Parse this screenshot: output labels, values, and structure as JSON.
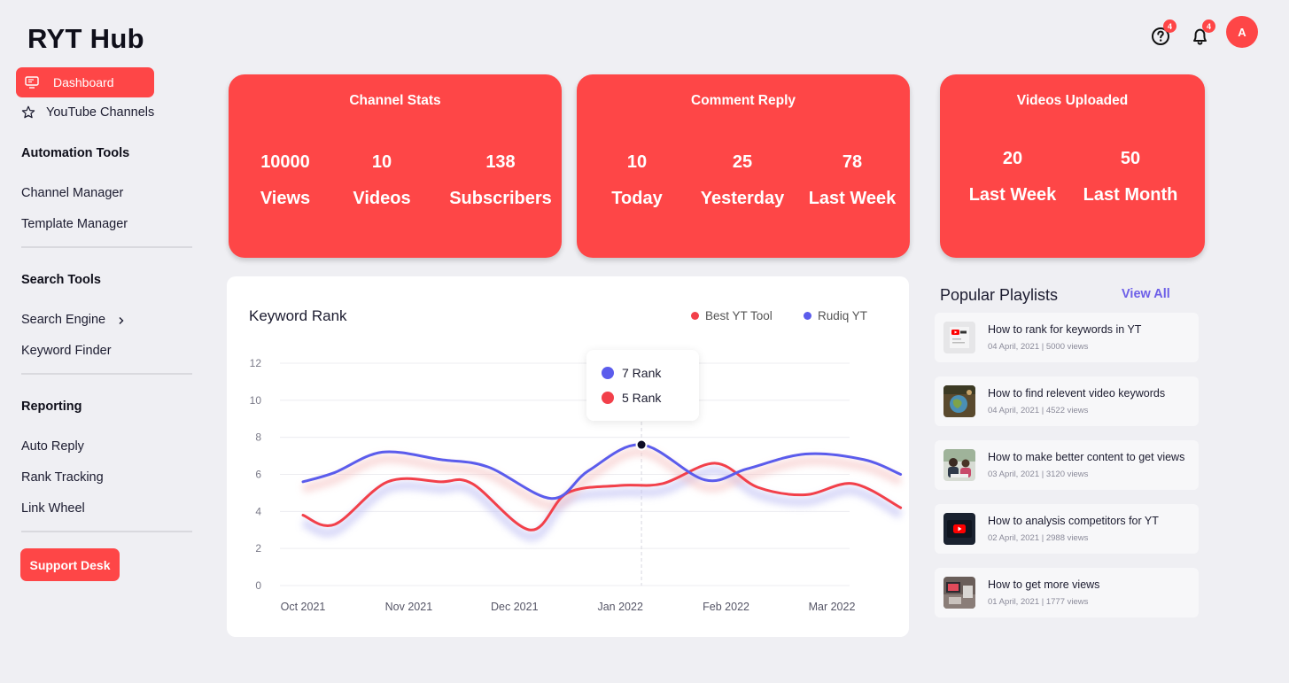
{
  "app": {
    "title": "RYT Hub"
  },
  "colors": {
    "accent": "#fe4647",
    "series_blue": "#5b5cec",
    "series_red": "#f2404a",
    "link": "#6d5fe8"
  },
  "topbar": {
    "help_badge": "4",
    "notifications_badge": "4",
    "avatar_initial": "A"
  },
  "sidebar": {
    "dashboard": "Dashboard",
    "youtube_channels": "YouTube Channels",
    "automation_head": "Automation Tools",
    "channel_manager": "Channel Manager",
    "template_manager": "Template Manager",
    "search_head": "Search Tools",
    "search_engine": "Search Engine",
    "keyword_finder": "Keyword Finder",
    "reporting_head": "Reporting",
    "auto_reply": "Auto Reply",
    "rank_tracking": "Rank Tracking",
    "link_wheel": "Link Wheel",
    "support_desk": "Support Desk"
  },
  "cards": {
    "channel_stats": {
      "title": "Channel Stats",
      "stats": [
        {
          "value": "10000",
          "label": "Views"
        },
        {
          "value": "10",
          "label": "Videos"
        },
        {
          "value": "138",
          "label": "Subscribers"
        }
      ]
    },
    "comment_reply": {
      "title": "Comment Reply",
      "stats": [
        {
          "value": "10",
          "label": "Today"
        },
        {
          "value": "25",
          "label": "Yesterday"
        },
        {
          "value": "78",
          "label": "Last Week"
        }
      ]
    },
    "videos_uploaded": {
      "title": "Videos Uploaded",
      "stats": [
        {
          "value": "20",
          "label": "Last Week"
        },
        {
          "value": "50",
          "label": "Last Month"
        }
      ]
    }
  },
  "chart_data": {
    "type": "line",
    "title": "Keyword Rank",
    "categories": [
      "Oct 2021",
      "Nov 2021",
      "Dec 2021",
      "Jan 2022",
      "Feb 2022",
      "Mar 2022"
    ],
    "yticks": [
      "0",
      "2",
      "4",
      "6",
      "8",
      "10",
      "12"
    ],
    "ylim": [
      0,
      12
    ],
    "grid": true,
    "legend_position": "top-right",
    "series": [
      {
        "name": "Best YT Tool",
        "color": "#f2404a",
        "points": [
          [
            0,
            3.8
          ],
          [
            0.3,
            3.3
          ],
          [
            0.8,
            5.6
          ],
          [
            1.3,
            5.6
          ],
          [
            1.6,
            5.5
          ],
          [
            2.15,
            3.0
          ],
          [
            2.5,
            5.0
          ],
          [
            3.0,
            5.4
          ],
          [
            3.4,
            5.5
          ],
          [
            3.9,
            6.6
          ],
          [
            4.3,
            5.3
          ],
          [
            4.75,
            4.9
          ],
          [
            5.2,
            5.5
          ],
          [
            5.65,
            4.2
          ]
        ]
      },
      {
        "name": "Rudiq YT",
        "color": "#5b5cec",
        "points": [
          [
            0,
            5.6
          ],
          [
            0.3,
            6.1
          ],
          [
            0.75,
            7.2
          ],
          [
            1.3,
            6.8
          ],
          [
            1.75,
            6.4
          ],
          [
            2.35,
            4.7
          ],
          [
            2.7,
            6.2
          ],
          [
            3.2,
            7.6
          ],
          [
            3.8,
            5.7
          ],
          [
            4.2,
            6.3
          ],
          [
            4.75,
            7.1
          ],
          [
            5.3,
            6.8
          ],
          [
            5.65,
            6.0
          ]
        ]
      }
    ],
    "tooltip": {
      "category_index": 3.2,
      "items": [
        {
          "label": "7 Rank",
          "color": "#5b5cec"
        },
        {
          "label": "5 Rank",
          "color": "#f2404a"
        }
      ]
    }
  },
  "playlists": {
    "title": "Popular Playlists",
    "view_all": "View All",
    "items": [
      {
        "name": "How to rank for keywords in YT",
        "meta": "04 April, 2021 | 5000 views",
        "thumb": "thumb-youtube-logo"
      },
      {
        "name": "How to find relevent video keywords",
        "meta": "04 April, 2021 | 4522 views",
        "thumb": "thumb-globe"
      },
      {
        "name": "How to make better content to get views",
        "meta": "03 April, 2021 | 3120 views",
        "thumb": "thumb-people"
      },
      {
        "name": "How to analysis competitors for YT",
        "meta": "02 April, 2021 | 2988 views",
        "thumb": "thumb-youtube-screen"
      },
      {
        "name": "How to get more views",
        "meta": "01 April, 2021 | 1777 views",
        "thumb": "thumb-desk"
      }
    ]
  }
}
